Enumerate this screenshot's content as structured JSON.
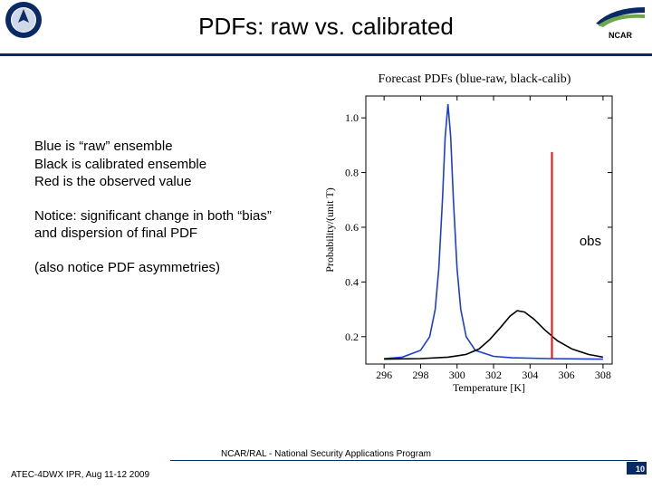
{
  "header": {
    "title": "PDFs: raw vs. calibrated",
    "right_label": "NCAR"
  },
  "text": {
    "p1": "Blue is “raw” ensemble\nBlack is calibrated ensemble\nRed is the observed value",
    "p2": "Notice: significant change in both “bias” and dispersion of final PDF",
    "p3": "(also notice PDF asymmetries)"
  },
  "obs_label": "obs",
  "chart": {
    "title": "Forecast PDFs (blue-raw, black-calib)",
    "type": "line",
    "xlabel": "Temperature [K]",
    "ylabel": "Probability/(unit T)",
    "xlim": [
      295,
      308.5
    ],
    "ylim": [
      0.1,
      1.08
    ],
    "xticks": [
      296,
      298,
      300,
      302,
      304,
      306,
      308
    ],
    "yticks": [
      0.2,
      0.4,
      0.6,
      0.8,
      1.0
    ],
    "background_color": "#ffffff",
    "axis_color": "#000000",
    "series": [
      {
        "name": "raw",
        "color": "#1a3fd6",
        "width": 1.6,
        "x": [
          296,
          297,
          298,
          298.5,
          298.8,
          299,
          299.2,
          299.35,
          299.5,
          299.65,
          299.8,
          300,
          300.2,
          300.5,
          301,
          302,
          303,
          305,
          308
        ],
        "y": [
          0.12,
          0.125,
          0.15,
          0.2,
          0.3,
          0.45,
          0.7,
          0.93,
          1.05,
          0.93,
          0.7,
          0.45,
          0.3,
          0.2,
          0.15,
          0.128,
          0.123,
          0.12,
          0.118
        ]
      },
      {
        "name": "calib",
        "color": "#000000",
        "width": 1.6,
        "x": [
          296,
          298,
          299.5,
          300.5,
          301.2,
          301.8,
          302.4,
          302.9,
          303.3,
          303.7,
          304.2,
          304.8,
          305.5,
          306.3,
          307.2,
          308
        ],
        "y": [
          0.118,
          0.12,
          0.125,
          0.135,
          0.155,
          0.19,
          0.235,
          0.275,
          0.295,
          0.29,
          0.265,
          0.225,
          0.185,
          0.155,
          0.135,
          0.125
        ]
      }
    ],
    "vline": {
      "x": 305.2,
      "color": "#e01010",
      "width": 2,
      "y_from": 0.118,
      "y_to": 0.875
    }
  },
  "footer": {
    "center": "NCAR/RAL - National Security Applications Program",
    "left": "ATEC-4DWX IPR, Aug 11-12 2009",
    "page": "10"
  },
  "colors": {
    "rule": "#0a2a66"
  }
}
